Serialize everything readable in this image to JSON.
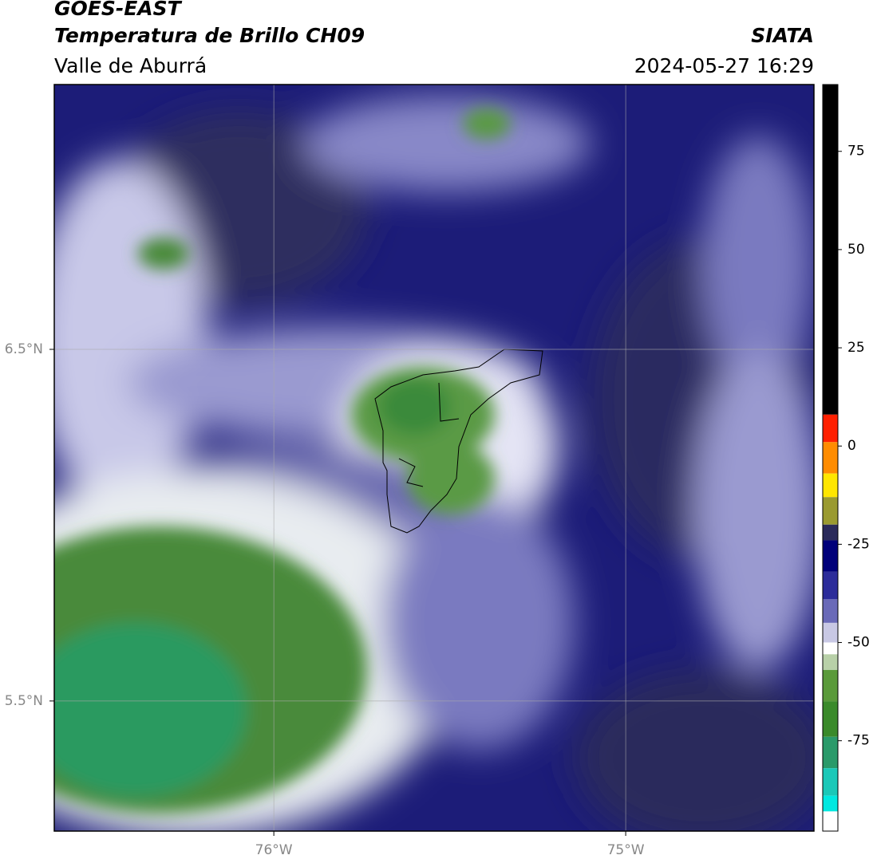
{
  "header": {
    "title": "GOES-EAST",
    "subtitle": "Temperatura de Brillo CH09",
    "region": "Valle de Aburrá",
    "source": "SIATA",
    "datetime": "2024-05-27 16:29"
  },
  "map": {
    "xlim": [
      -76.624,
      -74.465
    ],
    "ylim": [
      5.13,
      7.253
    ],
    "xticks": [
      {
        "value": -76,
        "label": "76°W"
      },
      {
        "value": -75,
        "label": "75°W"
      }
    ],
    "yticks": [
      {
        "value": 6.5,
        "label": "6.5°N"
      },
      {
        "value": 5.5,
        "label": "5.5°N"
      }
    ],
    "grid": true
  },
  "colorbar": {
    "lim": [
      -98,
      92
    ],
    "ticks": [
      75,
      50,
      25,
      0,
      -25,
      -50,
      -75
    ],
    "stops": [
      {
        "value": 92,
        "color": "#000000"
      },
      {
        "value": 8,
        "color": "#ff2000"
      },
      {
        "value": 1,
        "color": "#ff8c00"
      },
      {
        "value": -7,
        "color": "#ffe600"
      },
      {
        "value": -13,
        "color": "#9a9a30"
      },
      {
        "value": -20,
        "color": "#2a2a5a"
      },
      {
        "value": -24,
        "color": "#00007a"
      },
      {
        "value": -32,
        "color": "#2c2c9a"
      },
      {
        "value": -39,
        "color": "#6a6ab8"
      },
      {
        "value": -45,
        "color": "#c8c8e4"
      },
      {
        "value": -50,
        "color": "#ffffff"
      },
      {
        "value": -53,
        "color": "#b8d0a8"
      },
      {
        "value": -57,
        "color": "#5a9a3a"
      },
      {
        "value": -65,
        "color": "#3a8a2a"
      },
      {
        "value": -74,
        "color": "#2a9a6a"
      },
      {
        "value": -82,
        "color": "#1ac8b8"
      },
      {
        "value": -89,
        "color": "#00e8e0"
      },
      {
        "value": -93,
        "color": "#ffffff"
      }
    ]
  }
}
